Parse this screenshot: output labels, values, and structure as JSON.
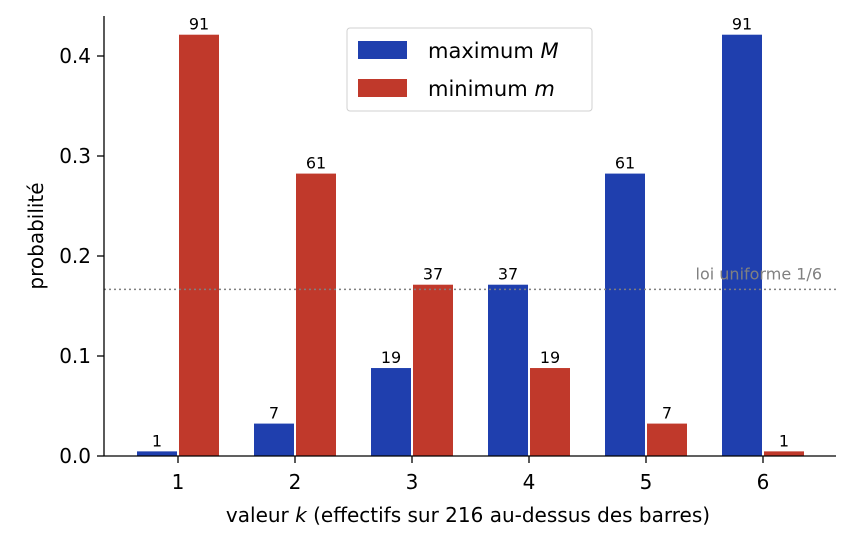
{
  "chart_data": {
    "type": "bar",
    "categories": [
      "1",
      "2",
      "3",
      "4",
      "5",
      "6"
    ],
    "series": [
      {
        "name": "maximum",
        "var": "M",
        "color": "#1f3fae",
        "values": [
          0.00463,
          0.03241,
          0.08796,
          0.1713,
          0.28241,
          0.4213
        ],
        "counts": [
          "1",
          "7",
          "19",
          "37",
          "61",
          "91"
        ]
      },
      {
        "name": "minimum",
        "var": "m",
        "color": "#c0392b",
        "values": [
          0.4213,
          0.28241,
          0.1713,
          0.08796,
          0.03241,
          0.00463
        ],
        "counts": [
          "91",
          "61",
          "37",
          "19",
          "7",
          "1"
        ]
      }
    ],
    "xlabel_pre": "valeur ",
    "xlabel_var": "k",
    "xlabel_post": " (effectifs sur 216 au-dessus des barres)",
    "ylabel": "probabilité",
    "ylim": [
      0,
      0.44
    ],
    "yticks": [
      "0.0",
      "0.1",
      "0.2",
      "0.3",
      "0.4"
    ],
    "ytick_values": [
      0,
      0.1,
      0.2,
      0.3,
      0.4
    ],
    "reference_line": {
      "value": 0.16667,
      "label": "loi uniforme 1/6",
      "color": "#808080"
    },
    "legend_position": "top-center",
    "grid": false
  }
}
